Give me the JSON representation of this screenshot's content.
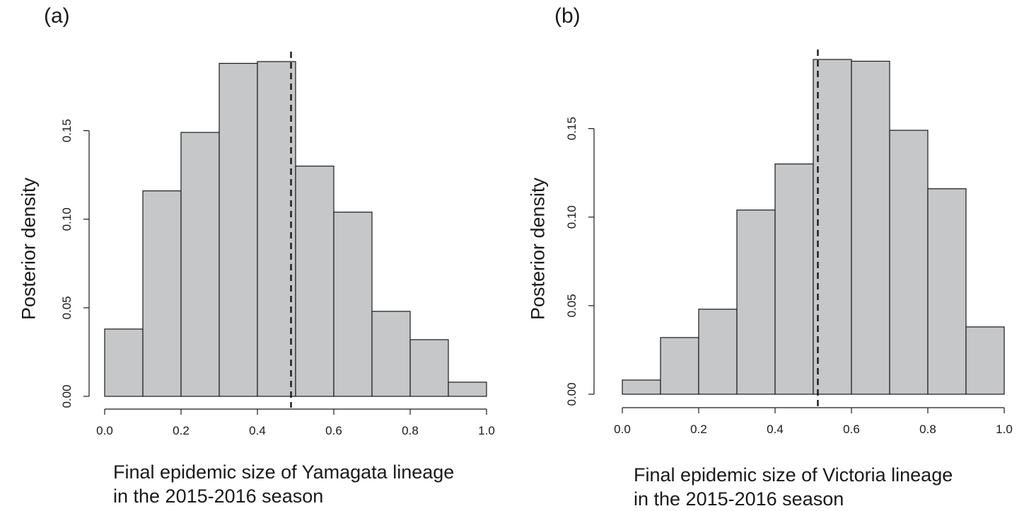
{
  "chart_data": [
    {
      "panel_label": "(a)",
      "type": "bar",
      "bin_edges": [
        0.0,
        0.1,
        0.2,
        0.3,
        0.4,
        0.5,
        0.6,
        0.7,
        0.8,
        0.9,
        1.0
      ],
      "values": [
        0.038,
        0.116,
        0.149,
        0.188,
        0.189,
        0.13,
        0.104,
        0.048,
        0.032,
        0.008
      ],
      "reference_line_x": 0.488,
      "xlabel_lines": [
        "Final epidemic size of Yamagata lineage",
        "in the 2015-2016 season"
      ],
      "ylabel": "Posterior density",
      "xlim": [
        0,
        1
      ],
      "ylim": [
        0,
        0.189
      ],
      "xticks": [
        "0.0",
        "0.2",
        "0.4",
        "0.6",
        "0.8",
        "1.0"
      ],
      "yticks": [
        "0.00",
        "0.05",
        "0.10",
        "0.15"
      ],
      "bar_color": "#c5c7c9",
      "grid": false
    },
    {
      "panel_label": "(b)",
      "type": "bar",
      "bin_edges": [
        0.0,
        0.1,
        0.2,
        0.3,
        0.4,
        0.5,
        0.6,
        0.7,
        0.8,
        0.9,
        1.0
      ],
      "values": [
        0.008,
        0.032,
        0.048,
        0.104,
        0.13,
        0.189,
        0.188,
        0.149,
        0.116,
        0.038
      ],
      "reference_line_x": 0.512,
      "xlabel_lines": [
        "Final epidemic size of Victoria lineage",
        "in the 2015-2016 season"
      ],
      "ylabel": "Posterior density",
      "xlim": [
        0,
        1
      ],
      "ylim": [
        0,
        0.189
      ],
      "xticks": [
        "0.0",
        "0.2",
        "0.4",
        "0.6",
        "0.8",
        "1.0"
      ],
      "yticks": [
        "0.00",
        "0.05",
        "0.10",
        "0.15"
      ],
      "bar_color": "#c5c7c9",
      "grid": false
    }
  ]
}
